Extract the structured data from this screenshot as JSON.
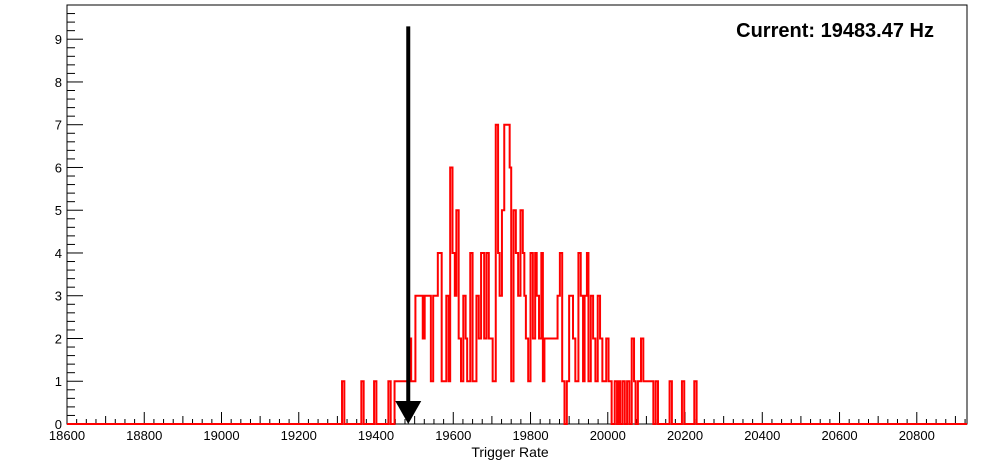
{
  "chart_data": {
    "type": "histogram",
    "title": "",
    "xlabel": "Trigger Rate",
    "ylabel": "",
    "xlim": [
      18600,
      20930
    ],
    "ylim": [
      0,
      9.8
    ],
    "x_ticks": [
      18600,
      18800,
      19000,
      19200,
      19400,
      19600,
      19800,
      20000,
      20200,
      20400,
      20600,
      20800
    ],
    "y_ticks": [
      0,
      1,
      2,
      3,
      4,
      5,
      6,
      7,
      8,
      9
    ],
    "grid": false,
    "legend": "none",
    "line_color": "#ff0000",
    "marker_color": "#000000",
    "annotation": "Current: 19483.47 Hz",
    "current_value": 19483.47,
    "series": [
      {
        "steps": [
          [
            18600,
            0
          ],
          [
            19312,
            1
          ],
          [
            19318,
            0
          ],
          [
            19362,
            1
          ],
          [
            19368,
            0
          ],
          [
            19395,
            1
          ],
          [
            19401,
            0
          ],
          [
            19432,
            1
          ],
          [
            19438,
            0
          ],
          [
            19448,
            1
          ],
          [
            19486,
            2
          ],
          [
            19491,
            1
          ],
          [
            19502,
            3
          ],
          [
            19521,
            2
          ],
          [
            19526,
            3
          ],
          [
            19542,
            1
          ],
          [
            19548,
            3
          ],
          [
            19560,
            4
          ],
          [
            19570,
            1
          ],
          [
            19582,
            3
          ],
          [
            19588,
            1
          ],
          [
            19592,
            6
          ],
          [
            19598,
            4
          ],
          [
            19604,
            3
          ],
          [
            19608,
            5
          ],
          [
            19614,
            2
          ],
          [
            19620,
            1
          ],
          [
            19626,
            3
          ],
          [
            19632,
            2
          ],
          [
            19636,
            1
          ],
          [
            19644,
            4
          ],
          [
            19650,
            1
          ],
          [
            19660,
            3
          ],
          [
            19666,
            2
          ],
          [
            19672,
            4
          ],
          [
            19680,
            2
          ],
          [
            19686,
            4
          ],
          [
            19692,
            2
          ],
          [
            19702,
            1
          ],
          [
            19710,
            7
          ],
          [
            19716,
            4
          ],
          [
            19720,
            3
          ],
          [
            19726,
            5
          ],
          [
            19732,
            7
          ],
          [
            19746,
            6
          ],
          [
            19750,
            1
          ],
          [
            19756,
            5
          ],
          [
            19762,
            4
          ],
          [
            19768,
            3
          ],
          [
            19774,
            5
          ],
          [
            19780,
            4
          ],
          [
            19784,
            3
          ],
          [
            19788,
            2
          ],
          [
            19794,
            1
          ],
          [
            19800,
            4
          ],
          [
            19806,
            2
          ],
          [
            19812,
            4
          ],
          [
            19816,
            3
          ],
          [
            19822,
            2
          ],
          [
            19828,
            4
          ],
          [
            19832,
            1
          ],
          [
            19836,
            2
          ],
          [
            19870,
            3
          ],
          [
            19876,
            4
          ],
          [
            19882,
            1
          ],
          [
            19888,
            0
          ],
          [
            19894,
            1
          ],
          [
            19900,
            3
          ],
          [
            19910,
            2
          ],
          [
            19916,
            1
          ],
          [
            19924,
            4
          ],
          [
            19930,
            3
          ],
          [
            19936,
            1
          ],
          [
            19940,
            3
          ],
          [
            19946,
            4
          ],
          [
            19950,
            1
          ],
          [
            19956,
            3
          ],
          [
            19962,
            2
          ],
          [
            19968,
            1
          ],
          [
            19974,
            3
          ],
          [
            19980,
            2
          ],
          [
            19986,
            1
          ],
          [
            19996,
            2
          ],
          [
            20002,
            1
          ],
          [
            20010,
            0
          ],
          [
            20018,
            1
          ],
          [
            20024,
            0
          ],
          [
            20028,
            1
          ],
          [
            20032,
            0
          ],
          [
            20038,
            1
          ],
          [
            20044,
            0
          ],
          [
            20050,
            1
          ],
          [
            20056,
            0
          ],
          [
            20062,
            2
          ],
          [
            20068,
            1
          ],
          [
            20072,
            0
          ],
          [
            20078,
            1
          ],
          [
            20086,
            2
          ],
          [
            20092,
            1
          ],
          [
            20118,
            0
          ],
          [
            20124,
            1
          ],
          [
            20130,
            0
          ],
          [
            20160,
            1
          ],
          [
            20166,
            0
          ],
          [
            20192,
            1
          ],
          [
            20198,
            0
          ],
          [
            20224,
            1
          ],
          [
            20230,
            0
          ],
          [
            20930,
            0
          ]
        ]
      }
    ]
  }
}
